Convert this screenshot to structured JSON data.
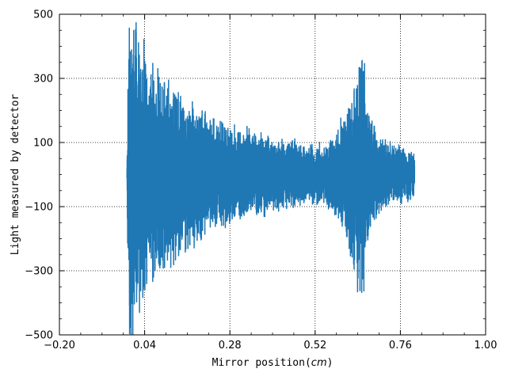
{
  "chart_data": {
    "type": "line",
    "title": "",
    "xlabel": "Mirror position(",
    "xlabel_unit": "cm",
    "xlabel_close": ")",
    "ylabel": "Light measured by detector",
    "xlim": [
      -0.2,
      1.0
    ],
    "ylim": [
      -500,
      500
    ],
    "xticks": [
      -0.2,
      0.04,
      0.28,
      0.52,
      0.76,
      1.0
    ],
    "xtick_labels": [
      "−0.20",
      "0.04",
      "0.28",
      "0.52",
      "0.76",
      "1.00"
    ],
    "yticks": [
      -500,
      -300,
      -100,
      100,
      300,
      500
    ],
    "ytick_labels": [
      "−500",
      "−300",
      "−100",
      "100",
      "300",
      "500"
    ],
    "grid": true,
    "grid_style": "dotted",
    "series": [
      {
        "color": "#1f77b4",
        "x_range": [
          -0.01,
          0.8
        ],
        "envelope": [
          {
            "x": -0.01,
            "amp": 0
          },
          {
            "x": -0.005,
            "amp": 600
          },
          {
            "x": 0.0,
            "amp": 650
          },
          {
            "x": 0.01,
            "amp": 560
          },
          {
            "x": 0.03,
            "amp": 470
          },
          {
            "x": 0.05,
            "amp": 380
          },
          {
            "x": 0.1,
            "amp": 330
          },
          {
            "x": 0.15,
            "amp": 270
          },
          {
            "x": 0.2,
            "amp": 220
          },
          {
            "x": 0.25,
            "amp": 190
          },
          {
            "x": 0.3,
            "amp": 160
          },
          {
            "x": 0.35,
            "amp": 150
          },
          {
            "x": 0.4,
            "amp": 130
          },
          {
            "x": 0.45,
            "amp": 120
          },
          {
            "x": 0.5,
            "amp": 105
          },
          {
            "x": 0.55,
            "amp": 110
          },
          {
            "x": 0.6,
            "amp": 190
          },
          {
            "x": 0.63,
            "amp": 320
          },
          {
            "x": 0.65,
            "amp": 470
          },
          {
            "x": 0.67,
            "amp": 220
          },
          {
            "x": 0.7,
            "amp": 130
          },
          {
            "x": 0.75,
            "amp": 100
          },
          {
            "x": 0.8,
            "amp": 85
          }
        ]
      }
    ]
  }
}
